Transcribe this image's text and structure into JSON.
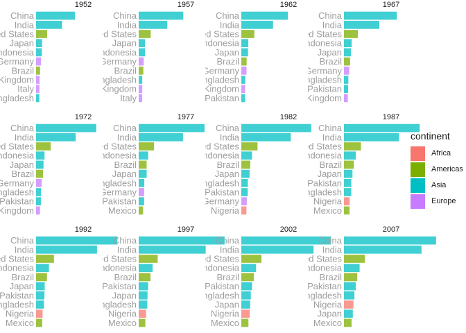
{
  "chart_data": {
    "type": "bar",
    "orientation": "horizontal",
    "facet_by": "year",
    "xlim": [
      0,
      1.35
    ],
    "grid": false,
    "legend_position": "right",
    "legend": {
      "title": "continent",
      "items": [
        {
          "label": "Africa",
          "color": "#F8766D"
        },
        {
          "label": "Americas",
          "color": "#7CAE00"
        },
        {
          "label": "Asia",
          "color": "#00BFC4"
        },
        {
          "label": "Europe",
          "color": "#C77CFF"
        }
      ]
    },
    "panels": [
      {
        "year": "1952",
        "bars": [
          {
            "country": "China",
            "continent": "Asia",
            "value": 0.556
          },
          {
            "country": "India",
            "continent": "Asia",
            "value": 0.372
          },
          {
            "country": "United States",
            "continent": "Americas",
            "value": 0.158
          },
          {
            "country": "Japan",
            "continent": "Asia",
            "value": 0.086
          },
          {
            "country": "Indonesia",
            "continent": "Asia",
            "value": 0.082
          },
          {
            "country": "Germany",
            "continent": "Europe",
            "value": 0.069
          },
          {
            "country": "Brazil",
            "continent": "Americas",
            "value": 0.057
          },
          {
            "country": "United Kingdom",
            "continent": "Europe",
            "value": 0.05
          },
          {
            "country": "Italy",
            "continent": "Europe",
            "value": 0.048
          },
          {
            "country": "Bangladesh",
            "continent": "Asia",
            "value": 0.046
          }
        ]
      },
      {
        "year": "1957",
        "bars": [
          {
            "country": "China",
            "continent": "Asia",
            "value": 0.637
          },
          {
            "country": "India",
            "continent": "Asia",
            "value": 0.409
          },
          {
            "country": "United States",
            "continent": "Americas",
            "value": 0.172
          },
          {
            "country": "Japan",
            "continent": "Asia",
            "value": 0.091
          },
          {
            "country": "Indonesia",
            "continent": "Asia",
            "value": 0.09
          },
          {
            "country": "Germany",
            "continent": "Europe",
            "value": 0.071
          },
          {
            "country": "Brazil",
            "continent": "Americas",
            "value": 0.066
          },
          {
            "country": "Bangladesh",
            "continent": "Asia",
            "value": 0.051
          },
          {
            "country": "United Kingdom",
            "continent": "Europe",
            "value": 0.051
          },
          {
            "country": "Italy",
            "continent": "Europe",
            "value": 0.049
          }
        ]
      },
      {
        "year": "1962",
        "bars": [
          {
            "country": "China",
            "continent": "Asia",
            "value": 0.666
          },
          {
            "country": "India",
            "continent": "Asia",
            "value": 0.454
          },
          {
            "country": "United States",
            "continent": "Americas",
            "value": 0.186
          },
          {
            "country": "Indonesia",
            "continent": "Asia",
            "value": 0.1
          },
          {
            "country": "Japan",
            "continent": "Asia",
            "value": 0.096
          },
          {
            "country": "Brazil",
            "continent": "Americas",
            "value": 0.076
          },
          {
            "country": "Germany",
            "continent": "Europe",
            "value": 0.074
          },
          {
            "country": "Bangladesh",
            "continent": "Asia",
            "value": 0.057
          },
          {
            "country": "United Kingdom",
            "continent": "Europe",
            "value": 0.053
          },
          {
            "country": "Pakistan",
            "continent": "Asia",
            "value": 0.053
          }
        ]
      },
      {
        "year": "1967",
        "bars": [
          {
            "country": "China",
            "continent": "Asia",
            "value": 0.755
          },
          {
            "country": "India",
            "continent": "Asia",
            "value": 0.506
          },
          {
            "country": "United States",
            "continent": "Americas",
            "value": 0.199
          },
          {
            "country": "Indonesia",
            "continent": "Asia",
            "value": 0.11
          },
          {
            "country": "Japan",
            "continent": "Asia",
            "value": 0.1
          },
          {
            "country": "Brazil",
            "continent": "Americas",
            "value": 0.088
          },
          {
            "country": "Germany",
            "continent": "Europe",
            "value": 0.076
          },
          {
            "country": "Bangladesh",
            "continent": "Asia",
            "value": 0.063
          },
          {
            "country": "Pakistan",
            "continent": "Asia",
            "value": 0.06
          },
          {
            "country": "United Kingdom",
            "continent": "Europe",
            "value": 0.055
          }
        ]
      },
      {
        "year": "1972",
        "bars": [
          {
            "country": "China",
            "continent": "Asia",
            "value": 0.862
          },
          {
            "country": "India",
            "continent": "Asia",
            "value": 0.567
          },
          {
            "country": "United States",
            "continent": "Americas",
            "value": 0.21
          },
          {
            "country": "Indonesia",
            "continent": "Asia",
            "value": 0.121
          },
          {
            "country": "Japan",
            "continent": "Asia",
            "value": 0.107
          },
          {
            "country": "Brazil",
            "continent": "Americas",
            "value": 0.1
          },
          {
            "country": "Germany",
            "continent": "Europe",
            "value": 0.079
          },
          {
            "country": "Bangladesh",
            "continent": "Asia",
            "value": 0.071
          },
          {
            "country": "Pakistan",
            "continent": "Asia",
            "value": 0.069
          },
          {
            "country": "United Kingdom",
            "continent": "Europe",
            "value": 0.056
          }
        ]
      },
      {
        "year": "1977",
        "bars": [
          {
            "country": "China",
            "continent": "Asia",
            "value": 0.943
          },
          {
            "country": "India",
            "continent": "Asia",
            "value": 0.634
          },
          {
            "country": "United States",
            "continent": "Americas",
            "value": 0.22
          },
          {
            "country": "Indonesia",
            "continent": "Asia",
            "value": 0.136
          },
          {
            "country": "Brazil",
            "continent": "Americas",
            "value": 0.114
          },
          {
            "country": "Japan",
            "continent": "Asia",
            "value": 0.114
          },
          {
            "country": "Bangladesh",
            "continent": "Asia",
            "value": 0.08
          },
          {
            "country": "Germany",
            "continent": "Europe",
            "value": 0.078
          },
          {
            "country": "Pakistan",
            "continent": "Asia",
            "value": 0.078
          },
          {
            "country": "Mexico",
            "continent": "Americas",
            "value": 0.063
          }
        ]
      },
      {
        "year": "1982",
        "bars": [
          {
            "country": "China",
            "continent": "Asia",
            "value": 1.0
          },
          {
            "country": "India",
            "continent": "Asia",
            "value": 0.708
          },
          {
            "country": "United States",
            "continent": "Americas",
            "value": 0.232
          },
          {
            "country": "Indonesia",
            "continent": "Asia",
            "value": 0.153
          },
          {
            "country": "Brazil",
            "continent": "Americas",
            "value": 0.128
          },
          {
            "country": "Japan",
            "continent": "Asia",
            "value": 0.118
          },
          {
            "country": "Bangladesh",
            "continent": "Asia",
            "value": 0.093
          },
          {
            "country": "Pakistan",
            "continent": "Asia",
            "value": 0.091
          },
          {
            "country": "Germany",
            "continent": "Europe",
            "value": 0.078
          },
          {
            "country": "Nigeria",
            "continent": "Africa",
            "value": 0.073
          }
        ]
      },
      {
        "year": "1987",
        "bars": [
          {
            "country": "China",
            "continent": "Asia",
            "value": 1.084
          },
          {
            "country": "India",
            "continent": "Asia",
            "value": 0.788
          },
          {
            "country": "United States",
            "continent": "Americas",
            "value": 0.243
          },
          {
            "country": "Indonesia",
            "continent": "Asia",
            "value": 0.169
          },
          {
            "country": "Brazil",
            "continent": "Americas",
            "value": 0.142
          },
          {
            "country": "Japan",
            "continent": "Asia",
            "value": 0.122
          },
          {
            "country": "Pakistan",
            "continent": "Asia",
            "value": 0.105
          },
          {
            "country": "Bangladesh",
            "continent": "Asia",
            "value": 0.104
          },
          {
            "country": "Nigeria",
            "continent": "Africa",
            "value": 0.082
          },
          {
            "country": "Mexico",
            "continent": "Americas",
            "value": 0.08
          }
        ]
      },
      {
        "year": "1992",
        "bars": [
          {
            "country": "China",
            "continent": "Asia",
            "value": 1.165
          },
          {
            "country": "India",
            "continent": "Asia",
            "value": 0.872
          },
          {
            "country": "United States",
            "continent": "Americas",
            "value": 0.257
          },
          {
            "country": "Indonesia",
            "continent": "Asia",
            "value": 0.184
          },
          {
            "country": "Brazil",
            "continent": "Americas",
            "value": 0.156
          },
          {
            "country": "Japan",
            "continent": "Asia",
            "value": 0.124
          },
          {
            "country": "Pakistan",
            "continent": "Asia",
            "value": 0.12
          },
          {
            "country": "Bangladesh",
            "continent": "Asia",
            "value": 0.114
          },
          {
            "country": "Nigeria",
            "continent": "Africa",
            "value": 0.093
          },
          {
            "country": "Mexico",
            "continent": "Americas",
            "value": 0.088
          }
        ]
      },
      {
        "year": "1997",
        "bars": [
          {
            "country": "China",
            "continent": "Asia",
            "value": 1.23
          },
          {
            "country": "India",
            "continent": "Asia",
            "value": 0.959
          },
          {
            "country": "United States",
            "continent": "Americas",
            "value": 0.272
          },
          {
            "country": "Indonesia",
            "continent": "Asia",
            "value": 0.199
          },
          {
            "country": "Brazil",
            "continent": "Americas",
            "value": 0.169
          },
          {
            "country": "Pakistan",
            "continent": "Asia",
            "value": 0.136
          },
          {
            "country": "Japan",
            "continent": "Asia",
            "value": 0.126
          },
          {
            "country": "Bangladesh",
            "continent": "Asia",
            "value": 0.123
          },
          {
            "country": "Nigeria",
            "continent": "Africa",
            "value": 0.106
          },
          {
            "country": "Mexico",
            "continent": "Americas",
            "value": 0.095
          }
        ]
      },
      {
        "year": "2002",
        "bars": [
          {
            "country": "China",
            "continent": "Asia",
            "value": 1.28
          },
          {
            "country": "India",
            "continent": "Asia",
            "value": 1.034
          },
          {
            "country": "United States",
            "continent": "Americas",
            "value": 0.288
          },
          {
            "country": "Indonesia",
            "continent": "Asia",
            "value": 0.211
          },
          {
            "country": "Brazil",
            "continent": "Americas",
            "value": 0.18
          },
          {
            "country": "Pakistan",
            "continent": "Asia",
            "value": 0.153
          },
          {
            "country": "Bangladesh",
            "continent": "Asia",
            "value": 0.136
          },
          {
            "country": "Japan",
            "continent": "Asia",
            "value": 0.127
          },
          {
            "country": "Nigeria",
            "continent": "Africa",
            "value": 0.119
          },
          {
            "country": "Mexico",
            "continent": "Americas",
            "value": 0.102
          }
        ]
      },
      {
        "year": "2007",
        "bars": [
          {
            "country": "China",
            "continent": "Asia",
            "value": 1.319
          },
          {
            "country": "India",
            "continent": "Asia",
            "value": 1.11
          },
          {
            "country": "United States",
            "continent": "Americas",
            "value": 0.301
          },
          {
            "country": "Indonesia",
            "continent": "Asia",
            "value": 0.224
          },
          {
            "country": "Brazil",
            "continent": "Americas",
            "value": 0.19
          },
          {
            "country": "Pakistan",
            "continent": "Asia",
            "value": 0.169
          },
          {
            "country": "Bangladesh",
            "continent": "Asia",
            "value": 0.15
          },
          {
            "country": "Nigeria",
            "continent": "Africa",
            "value": 0.135
          },
          {
            "country": "Japan",
            "continent": "Asia",
            "value": 0.127
          },
          {
            "country": "Mexico",
            "continent": "Americas",
            "value": 0.109
          }
        ]
      }
    ]
  }
}
